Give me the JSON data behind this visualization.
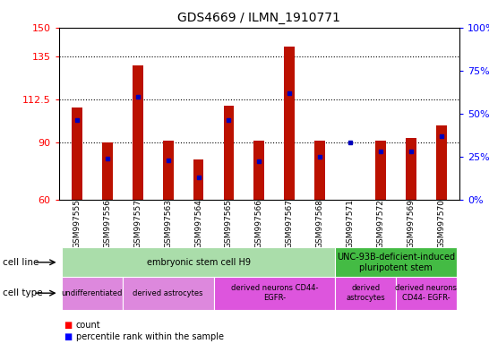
{
  "title": "GDS4669 / ILMN_1910771",
  "samples": [
    "GSM997555",
    "GSM997556",
    "GSM997557",
    "GSM997563",
    "GSM997564",
    "GSM997565",
    "GSM997566",
    "GSM997567",
    "GSM997568",
    "GSM997571",
    "GSM997572",
    "GSM997569",
    "GSM997570"
  ],
  "count_values": [
    108,
    90,
    130,
    91,
    81,
    109,
    91,
    140,
    91,
    60,
    91,
    92,
    99
  ],
  "percentile_values": [
    46,
    24,
    60,
    23,
    13,
    46,
    22,
    62,
    25,
    33,
    28,
    28,
    37
  ],
  "ylim_left": [
    60,
    150
  ],
  "ylim_right": [
    0,
    100
  ],
  "yticks_left": [
    60,
    90,
    112.5,
    135,
    150
  ],
  "yticks_right": [
    0,
    25,
    50,
    75,
    100
  ],
  "bar_color": "#bb1100",
  "dot_color": "#0000bb",
  "cell_line_groups": [
    {
      "label": "embryonic stem cell H9",
      "start": 0,
      "end": 8,
      "color": "#aaddaa"
    },
    {
      "label": "UNC-93B-deficient-induced\npluripotent stem",
      "start": 9,
      "end": 12,
      "color": "#44bb44"
    }
  ],
  "cell_type_groups": [
    {
      "label": "undifferentiated",
      "start": 0,
      "end": 1,
      "color": "#dd88dd"
    },
    {
      "label": "derived astrocytes",
      "start": 2,
      "end": 4,
      "color": "#dd88dd"
    },
    {
      "label": "derived neurons CD44-\nEGFR-",
      "start": 5,
      "end": 8,
      "color": "#dd55dd"
    },
    {
      "label": "derived\nastrocytes",
      "start": 9,
      "end": 10,
      "color": "#dd55dd"
    },
    {
      "label": "derived neurons\nCD44- EGFR-",
      "start": 11,
      "end": 12,
      "color": "#dd55dd"
    }
  ]
}
